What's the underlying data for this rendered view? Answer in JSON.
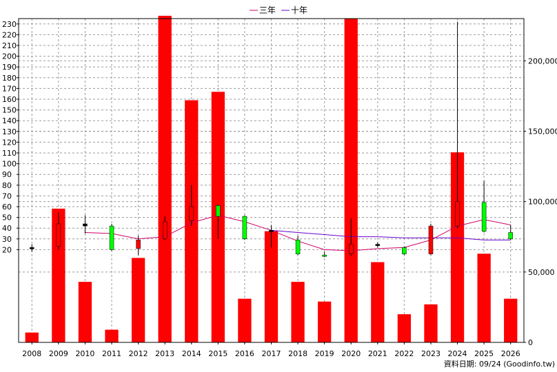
{
  "chart_data": {
    "type": "candlestick+line+bar",
    "years": [
      "2008",
      "2009",
      "2010",
      "2011",
      "2012",
      "2013",
      "2014",
      "2015",
      "2016",
      "2017",
      "2018",
      "2019",
      "2020",
      "2021",
      "2022",
      "2023",
      "2024",
      "2025",
      "2026"
    ],
    "price_axis": {
      "ticks": [
        "230",
        "220",
        "210",
        "200",
        "190",
        "180",
        "170",
        "160",
        "150",
        "140",
        "130",
        "120",
        "110",
        "100",
        "90",
        "80",
        "70",
        "60",
        "50",
        "40",
        "30",
        "20"
      ],
      "ylim": [
        10,
        235
      ]
    },
    "volume_axis": {
      "ticks": [
        "200,000",
        "150,000",
        "100,000",
        "50,000",
        "0"
      ],
      "ylim": [
        0,
        230000
      ]
    },
    "candles": [
      {
        "year": "2008",
        "open": 22,
        "close": 21,
        "high": 25,
        "low": 18,
        "color": "#000000"
      },
      {
        "year": "2009",
        "open": 23,
        "close": 44,
        "high": 55,
        "low": 20,
        "color": "#ff0000"
      },
      {
        "year": "2010",
        "open": 42,
        "close": 44,
        "high": 52,
        "low": 35,
        "color": "#000000"
      },
      {
        "year": "2011",
        "open": 42,
        "close": 20,
        "high": 44,
        "low": 19,
        "color": "#00ff00"
      },
      {
        "year": "2012",
        "open": 21,
        "close": 29,
        "high": 33,
        "low": 15,
        "color": "#ff0000"
      },
      {
        "year": "2013",
        "open": 30,
        "close": 46,
        "high": 51,
        "low": 29,
        "color": "#ff0000"
      },
      {
        "year": "2014",
        "open": 47,
        "close": 60,
        "high": 80,
        "low": 42,
        "color": "#ff0000"
      },
      {
        "year": "2015",
        "open": 61,
        "close": 51,
        "high": 62,
        "low": 30,
        "color": "#00ff00"
      },
      {
        "year": "2016",
        "open": 51,
        "close": 30,
        "high": 52,
        "low": 29,
        "color": "#00ff00"
      },
      {
        "year": "2017",
        "open": 37,
        "close": 38,
        "high": 43,
        "low": 22,
        "color": "#000000"
      },
      {
        "year": "2018",
        "open": 29,
        "close": 16,
        "high": 33,
        "low": 15,
        "color": "#00ff00"
      },
      {
        "year": "2019",
        "open": 15,
        "close": 14,
        "high": 18,
        "low": 13,
        "color": "#00ff00"
      },
      {
        "year": "2020",
        "open": 16,
        "close": 25,
        "high": 49,
        "low": 14,
        "color": "#ff0000"
      },
      {
        "year": "2021",
        "open": 24,
        "close": 25,
        "high": 27,
        "low": 22,
        "color": "#000000"
      },
      {
        "year": "2022",
        "open": 22,
        "close": 16,
        "high": 23,
        "low": 15,
        "color": "#00ff00"
      },
      {
        "year": "2023",
        "open": 16,
        "close": 42,
        "high": 44,
        "low": 15,
        "color": "#ff0000"
      },
      {
        "year": "2024",
        "open": 42,
        "close": 65,
        "high": 232,
        "low": 40,
        "color": "#ff0000"
      },
      {
        "year": "2025",
        "open": 64,
        "close": 37,
        "high": 84,
        "low": 36,
        "color": "#00ff00"
      },
      {
        "year": "2026",
        "open": 36,
        "close": 30,
        "high": 43,
        "low": 29,
        "color": "#00ff00"
      }
    ],
    "series": [
      {
        "name": "三年",
        "color": "#cc0066",
        "values": [
          null,
          null,
          36,
          35,
          30,
          32,
          45,
          52,
          46,
          38,
          28,
          20,
          19,
          21,
          22,
          29,
          42,
          48,
          43
        ]
      },
      {
        "name": "十年",
        "color": "#6600cc",
        "values": [
          null,
          null,
          null,
          null,
          null,
          null,
          null,
          null,
          null,
          38,
          36,
          34,
          32,
          32,
          31,
          31,
          31,
          29,
          29
        ]
      }
    ],
    "volume": {
      "color": "#ff0000",
      "values": [
        7000,
        95000,
        43000,
        9000,
        60000,
        232000,
        172000,
        178000,
        31000,
        79000,
        43000,
        29000,
        230000,
        57000,
        20000,
        27000,
        135000,
        63000,
        31000
      ]
    },
    "legend": {
      "position": "top-center",
      "items": [
        "三年",
        "十年"
      ]
    },
    "grid": true
  },
  "footer": {
    "credit": "資料日期: 09/24  (Goodinfo.tw)"
  }
}
